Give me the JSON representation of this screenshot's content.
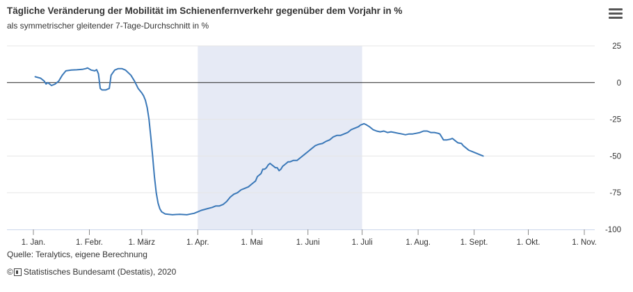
{
  "header": {
    "title": "Tägliche Veränderung der Mobilität im Schienenfernverkehr gegenüber dem Vorjahr in %",
    "subtitle": "als symmetrischer gleitender 7-Tage-Durchschnitt in %",
    "menu_icon": "hamburger-menu-icon"
  },
  "footer": {
    "source": "Quelle: Teralytics, eigene Berechnung",
    "copyright_symbol": "©",
    "credit": "Statistisches Bundesamt (Destatis), 2020"
  },
  "colors": {
    "line": "#3a78b8",
    "band": "#e6eaf5",
    "zero_line": "#222222"
  },
  "chart_data": {
    "type": "line",
    "title": "Tägliche Veränderung der Mobilität im Schienenfernverkehr gegenüber dem Vorjahr in %",
    "subtitle": "als symmetrischer gleitender 7-Tage-Durchschnitt in %",
    "x_unit": "day of year 2020",
    "x_ticks": [
      {
        "day": 1,
        "label": "1. Jan."
      },
      {
        "day": 32,
        "label": "1. Febr."
      },
      {
        "day": 61,
        "label": "1. März"
      },
      {
        "day": 92,
        "label": "1. Apr."
      },
      {
        "day": 122,
        "label": "1. Mai"
      },
      {
        "day": 153,
        "label": "1. Juni"
      },
      {
        "day": 183,
        "label": "1. Juli"
      },
      {
        "day": 214,
        "label": "1. Aug."
      },
      {
        "day": 245,
        "label": "1. Sept."
      },
      {
        "day": 275,
        "label": "1. Okt."
      },
      {
        "day": 306,
        "label": "1. Nov."
      }
    ],
    "y_ticks": [
      25,
      0,
      -25,
      -50,
      -75,
      -100
    ],
    "ylim": [
      -100,
      25
    ],
    "y_axis_side": "right",
    "highlight_band": {
      "from_day": 92,
      "to_day": 183
    },
    "reference_line": 0,
    "series": [
      {
        "values": [
          [
            2,
            4
          ],
          [
            5,
            3
          ],
          [
            7,
            1
          ],
          [
            8,
            -1
          ],
          [
            9,
            0
          ],
          [
            10,
            -1
          ],
          [
            11,
            -2
          ],
          [
            13,
            -1
          ],
          [
            15,
            1
          ],
          [
            17,
            5
          ],
          [
            19,
            8
          ],
          [
            22,
            8.5
          ],
          [
            25,
            8.7
          ],
          [
            28,
            9
          ],
          [
            30,
            9.5
          ],
          [
            31,
            10
          ],
          [
            33,
            8.5
          ],
          [
            35,
            8
          ],
          [
            36,
            8.8
          ],
          [
            37,
            6
          ],
          [
            38,
            -4
          ],
          [
            39,
            -5
          ],
          [
            41,
            -5
          ],
          [
            43,
            -4
          ],
          [
            44,
            5
          ],
          [
            46,
            8.5
          ],
          [
            48,
            9.5
          ],
          [
            50,
            9.5
          ],
          [
            52,
            8.5
          ],
          [
            55,
            5
          ],
          [
            57,
            1
          ],
          [
            59,
            -4
          ],
          [
            61,
            -7
          ],
          [
            62,
            -9
          ],
          [
            63,
            -12
          ],
          [
            64,
            -17
          ],
          [
            65,
            -25
          ],
          [
            66,
            -37
          ],
          [
            67,
            -50
          ],
          [
            68,
            -64
          ],
          [
            69,
            -75
          ],
          [
            70,
            -82
          ],
          [
            71,
            -86
          ],
          [
            72,
            -88
          ],
          [
            74,
            -89.5
          ],
          [
            78,
            -90
          ],
          [
            82,
            -89.7
          ],
          [
            86,
            -90
          ],
          [
            88,
            -89.5
          ],
          [
            90,
            -89
          ],
          [
            92,
            -88
          ],
          [
            94,
            -87
          ],
          [
            97,
            -86
          ],
          [
            100,
            -85
          ],
          [
            102,
            -84
          ],
          [
            104,
            -84
          ],
          [
            106,
            -83
          ],
          [
            108,
            -81
          ],
          [
            110,
            -78
          ],
          [
            112,
            -76
          ],
          [
            114,
            -75
          ],
          [
            116,
            -73
          ],
          [
            118,
            -72
          ],
          [
            120,
            -71
          ],
          [
            122,
            -69
          ],
          [
            124,
            -67
          ],
          [
            125,
            -64
          ],
          [
            126,
            -63
          ],
          [
            127,
            -62
          ],
          [
            128,
            -59
          ],
          [
            129,
            -59
          ],
          [
            130,
            -58
          ],
          [
            131,
            -56
          ],
          [
            132,
            -55
          ],
          [
            133,
            -56
          ],
          [
            134,
            -57
          ],
          [
            135,
            -58
          ],
          [
            136,
            -58
          ],
          [
            137,
            -60
          ],
          [
            138,
            -59
          ],
          [
            139,
            -57
          ],
          [
            140,
            -56
          ],
          [
            141,
            -55
          ],
          [
            142,
            -54
          ],
          [
            143,
            -54
          ],
          [
            145,
            -53
          ],
          [
            147,
            -53
          ],
          [
            149,
            -51
          ],
          [
            151,
            -49
          ],
          [
            153,
            -47
          ],
          [
            155,
            -45
          ],
          [
            157,
            -43
          ],
          [
            159,
            -42
          ],
          [
            161,
            -41.5
          ],
          [
            163,
            -40
          ],
          [
            165,
            -39
          ],
          [
            167,
            -37
          ],
          [
            169,
            -36
          ],
          [
            171,
            -36
          ],
          [
            173,
            -35
          ],
          [
            175,
            -34
          ],
          [
            177,
            -32
          ],
          [
            179,
            -31
          ],
          [
            181,
            -30
          ],
          [
            182,
            -29
          ],
          [
            184,
            -28
          ],
          [
            185,
            -28.5
          ],
          [
            187,
            -30
          ],
          [
            189,
            -32
          ],
          [
            191,
            -33
          ],
          [
            193,
            -33.5
          ],
          [
            195,
            -33
          ],
          [
            197,
            -34
          ],
          [
            199,
            -33.5
          ],
          [
            201,
            -34
          ],
          [
            203,
            -34.5
          ],
          [
            205,
            -35
          ],
          [
            207,
            -35.5
          ],
          [
            209,
            -35
          ],
          [
            211,
            -35
          ],
          [
            213,
            -34.5
          ],
          [
            215,
            -34
          ],
          [
            217,
            -33
          ],
          [
            219,
            -33
          ],
          [
            221,
            -34
          ],
          [
            223,
            -34
          ],
          [
            225,
            -34.5
          ],
          [
            226,
            -35
          ],
          [
            227,
            -37
          ],
          [
            228,
            -39
          ],
          [
            230,
            -39
          ],
          [
            232,
            -38.5
          ],
          [
            233,
            -38
          ],
          [
            235,
            -40
          ],
          [
            236,
            -41
          ],
          [
            238,
            -41.5
          ],
          [
            239,
            -43
          ],
          [
            240,
            -44
          ],
          [
            241,
            -45
          ],
          [
            242,
            -46
          ],
          [
            244,
            -47
          ],
          [
            246,
            -48
          ],
          [
            248,
            -49
          ],
          [
            250,
            -50
          ]
        ]
      }
    ]
  }
}
